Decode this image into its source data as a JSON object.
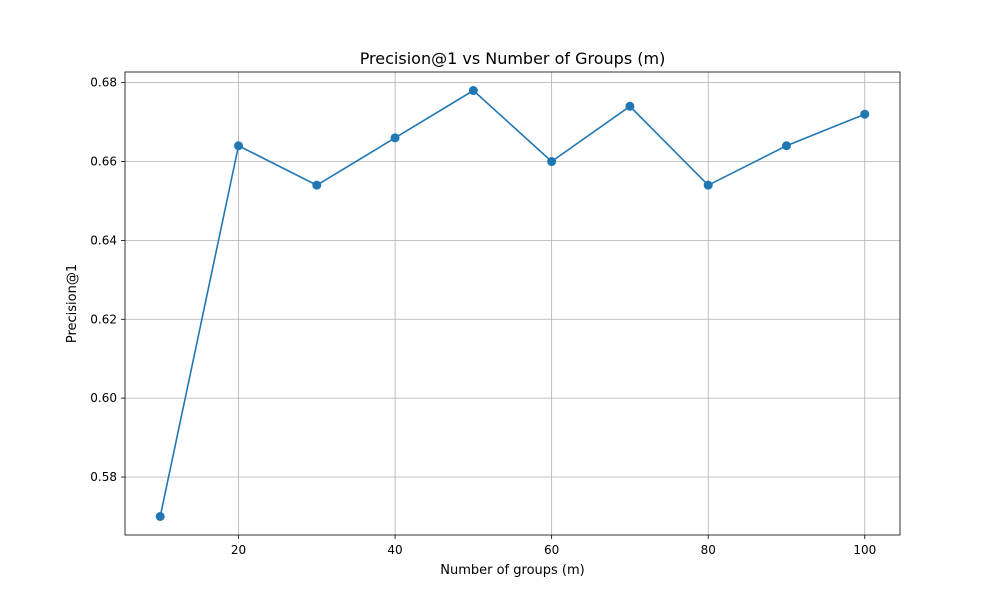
{
  "chart_data": {
    "type": "line",
    "title": "Precision@1 vs Number of Groups (m)",
    "xlabel": "Number of groups (m)",
    "ylabel": "Precision@1",
    "x": [
      10,
      20,
      30,
      40,
      50,
      60,
      70,
      80,
      90,
      100
    ],
    "series": [
      {
        "values": [
          0.57,
          0.664,
          0.654,
          0.666,
          0.678,
          0.66,
          0.674,
          0.654,
          0.664,
          0.672
        ],
        "color": "#1f77b4",
        "marker": "circle"
      }
    ],
    "xlim": [
      5.5,
      104.5
    ],
    "ylim": [
      0.5653,
      0.6827
    ],
    "xticks": [
      20,
      40,
      60,
      80,
      100
    ],
    "xtick_labels": [
      "20",
      "40",
      "60",
      "80",
      "100"
    ],
    "yticks": [
      0.58,
      0.6,
      0.62,
      0.64,
      0.66,
      0.68
    ],
    "ytick_labels": [
      "0.58",
      "0.60",
      "0.62",
      "0.64",
      "0.66",
      "0.68"
    ],
    "grid": true,
    "legend": "none"
  }
}
